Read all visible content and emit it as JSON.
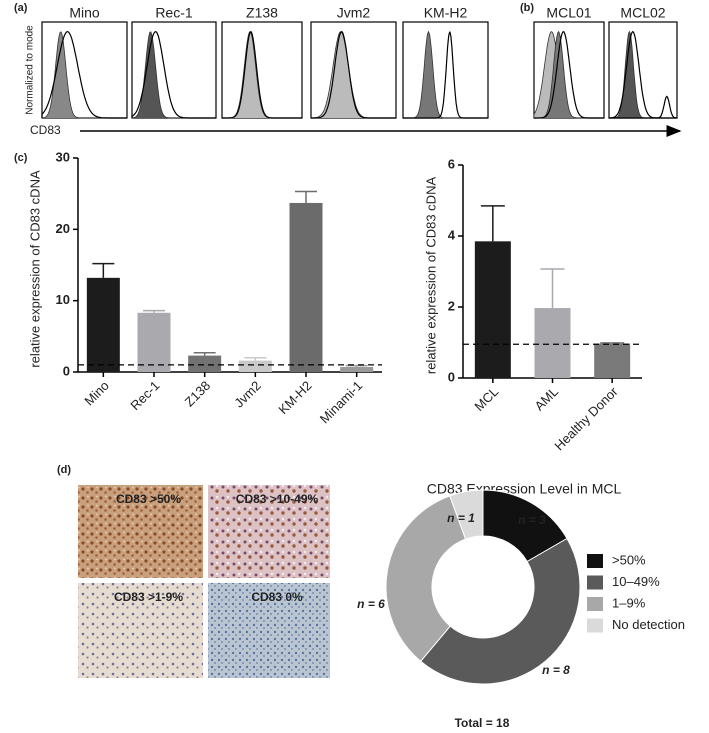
{
  "chart_data": [
    {
      "type": "histogram-overlay",
      "panel_label": "(a)",
      "panels": [
        "Mino",
        "Rec-1",
        "Z138",
        "Jvm2",
        "KM-H2"
      ],
      "y_label": "Normalized to mode",
      "x_label": "CD83"
    },
    {
      "type": "histogram-overlay",
      "panel_label": "(b)",
      "panels": [
        "MCL01",
        "MCL02"
      ]
    },
    {
      "type": "bar",
      "panel_label": "(c)",
      "y_label": "relative expression of CD83 cDNA",
      "categories": [
        "Mino",
        "Rec-1",
        "Z138",
        "Jvm2",
        "KM-H2",
        "Minami-1"
      ],
      "values": [
        13.2,
        8.3,
        2.3,
        1.6,
        23.7,
        0.7
      ],
      "errors": [
        2.0,
        0.3,
        0.4,
        0.4,
        1.6,
        0.2
      ],
      "colors": [
        "#1c1c1c",
        "#a9a9ae",
        "#727272",
        "#c9c9c9",
        "#6b6b6b",
        "#9a9a9a"
      ],
      "ylim": [
        0,
        30
      ],
      "yticks": [
        0,
        10,
        20,
        30
      ],
      "reference_line": 1
    },
    {
      "type": "bar",
      "y_label": "relative expression of CD83 cDNA",
      "categories": [
        "MCL",
        "AML",
        "Healthy Donor"
      ],
      "values": [
        3.85,
        1.97,
        0.97
      ],
      "errors": [
        1.0,
        1.1,
        0.02
      ],
      "colors": [
        "#1c1c1c",
        "#a9a9ae",
        "#7a7a7a"
      ],
      "ylim": [
        0,
        6
      ],
      "yticks": [
        0,
        2,
        4,
        6
      ],
      "reference_line": 0.95
    },
    {
      "type": "image-grid",
      "panel_label": "(d)",
      "captions": [
        "CD83 >50%",
        "CD83 >10-49%",
        "CD83 >1-9%",
        "CD83 0%"
      ]
    },
    {
      "type": "donut",
      "title": "CD83 Expression Level in MCL",
      "categories": [
        ">50%",
        "10–49%",
        "1–9%",
        "No detection"
      ],
      "values": [
        3,
        8,
        6,
        1
      ],
      "value_labels": [
        "n = 3",
        "n = 8",
        "n = 6",
        "n = 1"
      ],
      "colors": [
        "#111111",
        "#5a5a5a",
        "#a8a8a8",
        "#dadada"
      ],
      "total_label": "Total = 18"
    }
  ]
}
